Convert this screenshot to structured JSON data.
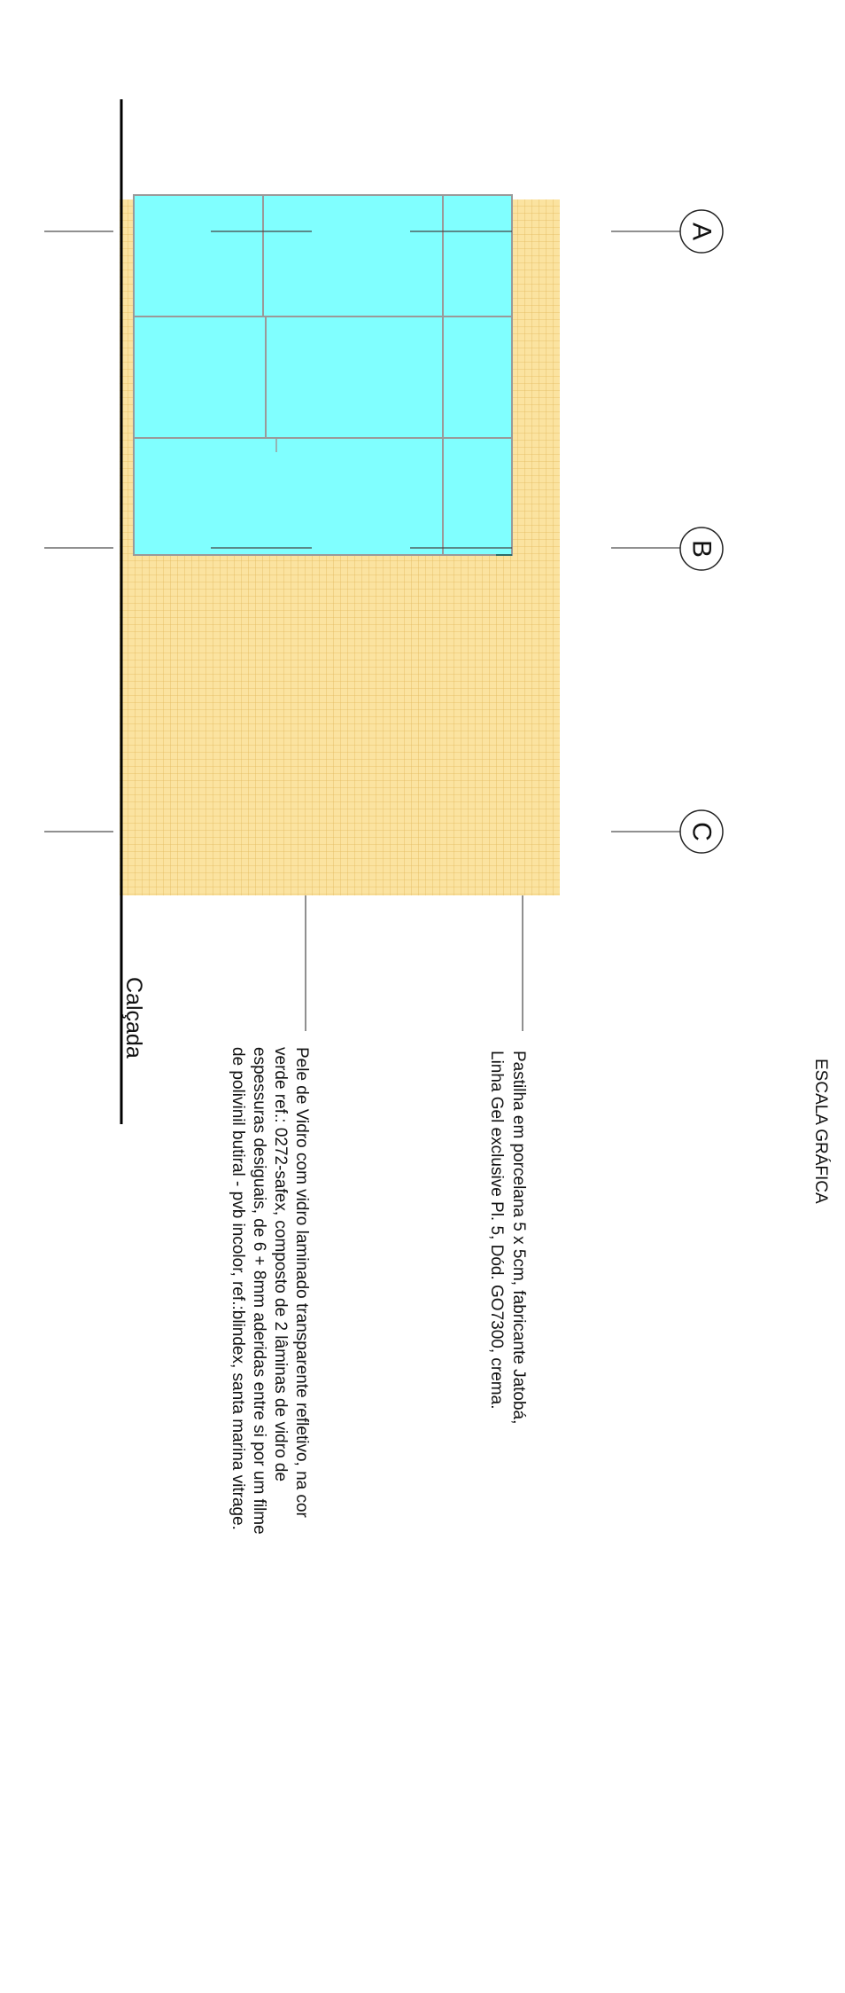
{
  "drawing": {
    "sidewalk_label": "Calçada",
    "scale_label": "ESCALA GRÁFICA",
    "grid_markers": [
      "A",
      "B",
      "C"
    ],
    "notes": {
      "tile": [
        "Pastilha em porcelana 5 x 5cm, fabricante Jatobá,",
        "Linha Gel exclusive Pl. 5, Dód. GO7300, crema."
      ],
      "glass": [
        "Pele de Vidro com vidro laminado transparente  refletivo, na cor",
        "verde  ref.:  0272-safex, composto de 2 lâminas de vidro de",
        "espessuras desiguais, de 6 + 8mm aderidas entre si por um filme",
        "de  polivinil butiral - pvb incolor, ref.:blindex, santa marina vitrage."
      ]
    },
    "colors": {
      "tile_fill": "#fbe3a0",
      "tile_grid": "#e2b95c",
      "glass_fill": "#80ffff",
      "glass_frame": "#9a9a9a",
      "line": "#000000"
    }
  }
}
